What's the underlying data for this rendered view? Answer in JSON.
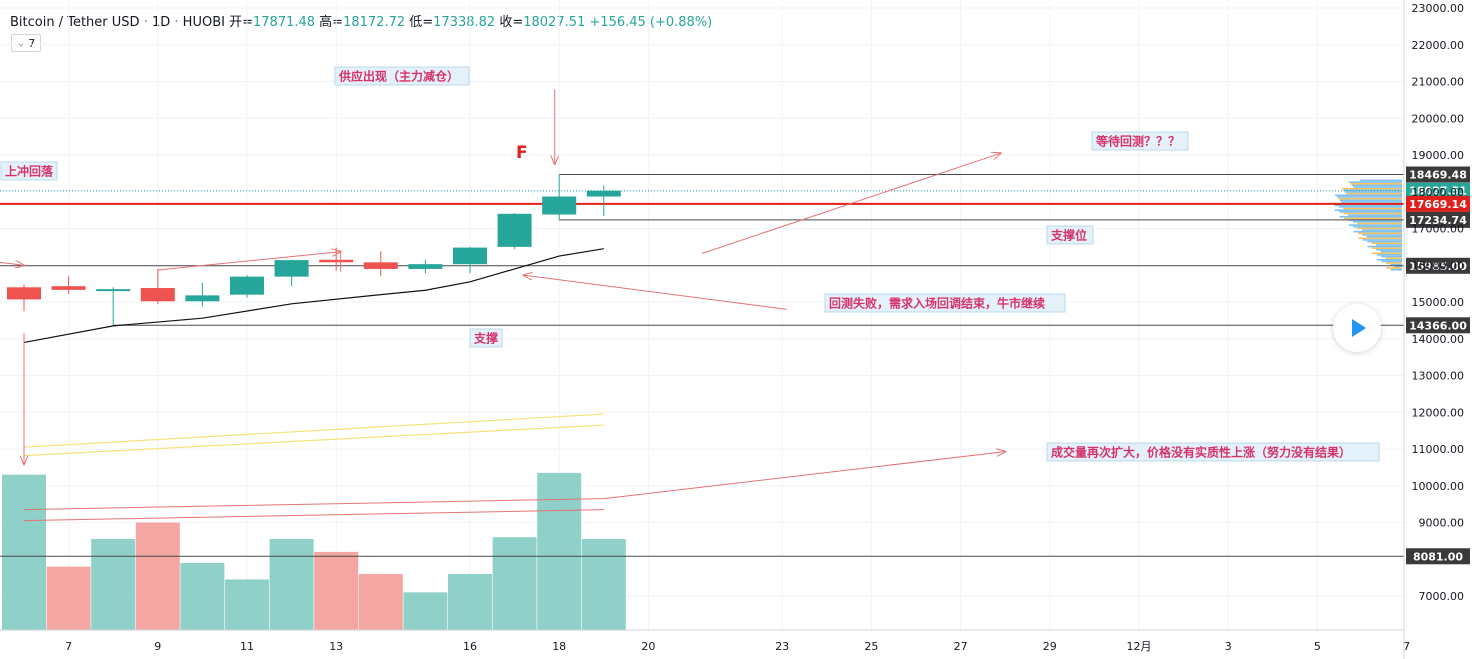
{
  "header": {
    "symbol": "Bitcoin / Tether USD",
    "interval": "1D",
    "exchange": "HUOBI",
    "open_label": "开=",
    "open": "17871.48",
    "high_label": "高=",
    "high": "18172.72",
    "low_label": "低=",
    "low": "17338.82",
    "close_label": "收=",
    "close": "18027.51",
    "change": "+156.45 (+0.88%)"
  },
  "indicator_button": {
    "chevron": "⌄",
    "value": "7"
  },
  "chart_data": {
    "type": "candlestick",
    "price_axis_ticks": [
      23000,
      22000,
      21000,
      20000,
      19000,
      18000,
      17000,
      16000,
      15000,
      14000,
      13000,
      12000,
      11000,
      10000,
      9000,
      7000
    ],
    "price_axis_labels": [
      "23000.00",
      "22000.00",
      "21000.00",
      "20000.00",
      "19000.00",
      "18000.00",
      "17000.00",
      "16000.00",
      "15000.00",
      "14000.00",
      "13000.00",
      "12000.00",
      "11000.00",
      "10000.00",
      "9000.00",
      "7000.00"
    ],
    "date_axis": {
      "labels": [
        "7",
        "9",
        "11",
        "13",
        "16",
        "18",
        "20",
        "23",
        "25",
        "27",
        "29",
        "12月",
        "3",
        "5",
        "7"
      ],
      "day_index": [
        1,
        3,
        5,
        7,
        10,
        12,
        14,
        17,
        19,
        21,
        23,
        25,
        27,
        29,
        31
      ]
    },
    "candles": [
      {
        "i": 0,
        "o": 15400,
        "h": 15480,
        "l": 14750,
        "c": 15070
      },
      {
        "i": 1,
        "o": 15430,
        "h": 15700,
        "l": 15220,
        "c": 15330
      },
      {
        "i": 2,
        "o": 15310,
        "h": 15400,
        "l": 14340,
        "c": 15350
      },
      {
        "i": 3,
        "o": 15380,
        "h": 15900,
        "l": 14950,
        "c": 15020
      },
      {
        "i": 4,
        "o": 15020,
        "h": 15520,
        "l": 14880,
        "c": 15180
      },
      {
        "i": 5,
        "o": 15200,
        "h": 15730,
        "l": 15120,
        "c": 15690
      },
      {
        "i": 6,
        "o": 15690,
        "h": 16150,
        "l": 15430,
        "c": 16140
      },
      {
        "i": 7,
        "o": 16150,
        "h": 16480,
        "l": 15860,
        "c": 16080
      },
      {
        "i": 8,
        "o": 16080,
        "h": 16380,
        "l": 15700,
        "c": 15900
      },
      {
        "i": 9,
        "o": 15900,
        "h": 16150,
        "l": 15780,
        "c": 16030
      },
      {
        "i": 10,
        "o": 16030,
        "h": 16500,
        "l": 15780,
        "c": 16480
      },
      {
        "i": 11,
        "o": 16500,
        "h": 17420,
        "l": 16440,
        "c": 17400
      },
      {
        "i": 12,
        "o": 17380,
        "h": 18469,
        "l": 17240,
        "c": 17870
      },
      {
        "i": 13,
        "o": 17870,
        "h": 18173,
        "l": 17339,
        "c": 18028
      }
    ],
    "volume_bars": [
      {
        "i": 0,
        "top": 10300
      },
      {
        "i": 1,
        "top": 7800
      },
      {
        "i": 2,
        "top": 8550
      },
      {
        "i": 3,
        "top": 9000
      },
      {
        "i": 4,
        "top": 7900
      },
      {
        "i": 5,
        "top": 7450
      },
      {
        "i": 6,
        "top": 8550
      },
      {
        "i": 7,
        "top": 8200
      },
      {
        "i": 8,
        "top": 7600
      },
      {
        "i": 9,
        "top": 7100
      },
      {
        "i": 10,
        "top": 7600
      },
      {
        "i": 11,
        "top": 8600
      },
      {
        "i": 12,
        "top": 10350
      },
      {
        "i": 13,
        "top": 8550
      }
    ],
    "volume_up_flags": [
      true,
      false,
      true,
      false,
      true,
      true,
      true,
      false,
      false,
      true,
      true,
      true,
      true,
      true
    ],
    "horizontal_levels": [
      {
        "price": 18469.48,
        "label": "18469.48",
        "color": "#4a4a4a",
        "start_i": 12
      },
      {
        "price": 18027.51,
        "label": "18027.51",
        "color": "#26a69a",
        "dotted": true
      },
      {
        "price": 17669.14,
        "label": "17669.14",
        "color": "#e0201b",
        "width": 2
      },
      {
        "price": 17234.74,
        "label": "17234.74",
        "color": "#4a4a4a",
        "start_i": 12
      },
      {
        "price": 15985.0,
        "label": "15985.00",
        "color": "#4a4a4a"
      },
      {
        "price": 14366.0,
        "label": "14366.00",
        "color": "#4a4a4a",
        "start_i": 2
      },
      {
        "price": 8081.0,
        "label": "8081.00",
        "color": "#4a4a4a"
      }
    ],
    "moving_average": [
      [
        0,
        13900
      ],
      [
        2,
        14350
      ],
      [
        4,
        14560
      ],
      [
        6,
        14950
      ],
      [
        8,
        15200
      ],
      [
        9,
        15320
      ],
      [
        10,
        15550
      ],
      [
        11,
        15900
      ],
      [
        12,
        16250
      ],
      [
        13,
        16450
      ]
    ],
    "yellow_channel": [
      [
        [
          0,
          11050
        ],
        [
          13,
          11950
        ]
      ],
      [
        [
          0,
          10820
        ],
        [
          13,
          11650
        ]
      ]
    ],
    "red_volume_trend": [
      [
        [
          0,
          9350
        ],
        [
          13,
          9650
        ],
        [
          22,
          10930
        ]
      ],
      [
        [
          0,
          9050
        ],
        [
          13,
          9350
        ]
      ]
    ]
  },
  "annotations": {
    "supply": "供应出现（主力减仓）",
    "f_marker": "F",
    "upthrust": "上冲回落",
    "wait_retest": "等待回测？？？",
    "support_level": "支撑位",
    "retest_fail": "回测失败，需求入场回调结束，牛市继续",
    "support": "支撑",
    "volume_note": "成交量再次扩大，价格没有实质性上涨（努力没有结果）"
  },
  "colors": {
    "up": "#26a69a",
    "down": "#ef5350",
    "vol_up": "#8fd1c8",
    "vol_down": "#f4a6a3",
    "annotation_text": "#d6336c",
    "annotation_bg": "#e4f1fb",
    "annotation_border": "#bcd9ee",
    "arrow": "#e57373"
  }
}
